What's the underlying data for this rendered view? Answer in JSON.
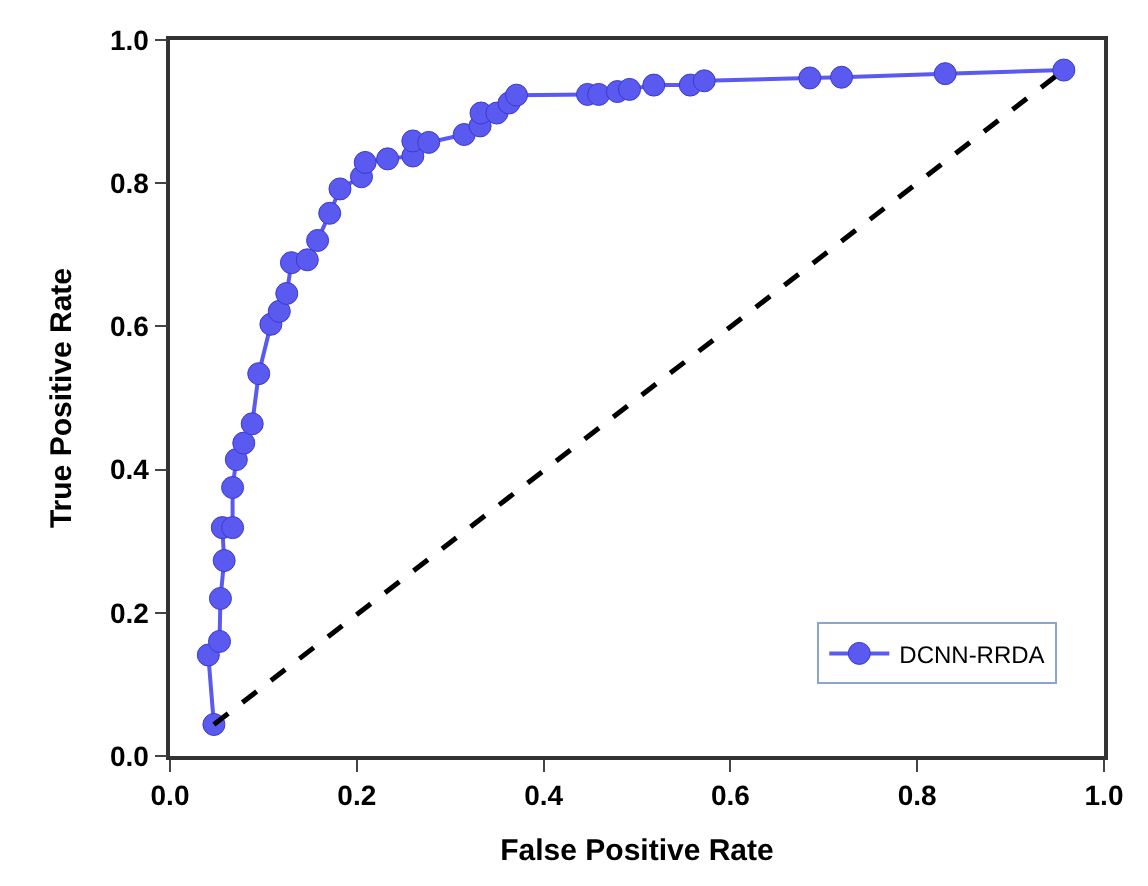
{
  "chart_data": {
    "type": "line",
    "xlabel": "False Positive Rate",
    "ylabel": "True Positive Rate",
    "xlim": [
      0,
      1
    ],
    "ylim": [
      0,
      1
    ],
    "xticks": [
      {
        "value": 0,
        "label": "0.0"
      },
      0.2,
      0.4,
      0.6,
      0.8,
      {
        "value": 1,
        "label": "1.0"
      }
    ],
    "yticks": [
      {
        "value": 0,
        "label": "0.0"
      },
      0.2,
      0.4,
      0.6,
      0.8,
      {
        "value": 1,
        "label": "1.0"
      }
    ],
    "legend": "bottom right",
    "series": [
      {
        "name": "DCNN-RRDA",
        "color": "#5a5af0",
        "marker": "circle",
        "line_style": "solid",
        "x": [
          0.047,
          0.041,
          0.053,
          0.054,
          0.058,
          0.056,
          0.067,
          0.067,
          0.071,
          0.079,
          0.088,
          0.095,
          0.108,
          0.117,
          0.125,
          0.13,
          0.147,
          0.158,
          0.171,
          0.182,
          0.205,
          0.209,
          0.233,
          0.26,
          0.26,
          0.277,
          0.315,
          0.332,
          0.333,
          0.35,
          0.363,
          0.371,
          0.447,
          0.459,
          0.479,
          0.492,
          0.518,
          0.557,
          0.572,
          0.685,
          0.719,
          0.83,
          0.957
        ],
        "values": [
          0.044,
          0.141,
          0.16,
          0.22,
          0.273,
          0.319,
          0.319,
          0.375,
          0.414,
          0.437,
          0.464,
          0.534,
          0.603,
          0.621,
          0.646,
          0.689,
          0.693,
          0.72,
          0.758,
          0.792,
          0.809,
          0.829,
          0.834,
          0.838,
          0.859,
          0.857,
          0.868,
          0.88,
          0.898,
          0.898,
          0.912,
          0.923,
          0.924,
          0.924,
          0.928,
          0.931,
          0.937,
          0.937,
          0.943,
          0.947,
          0.948,
          0.953,
          0.958
        ]
      },
      {
        "color": "#000000",
        "marker": "none",
        "line_style": "dashed",
        "x": [
          0.047,
          0.957
        ],
        "values": [
          0.044,
          0.958
        ]
      }
    ]
  }
}
